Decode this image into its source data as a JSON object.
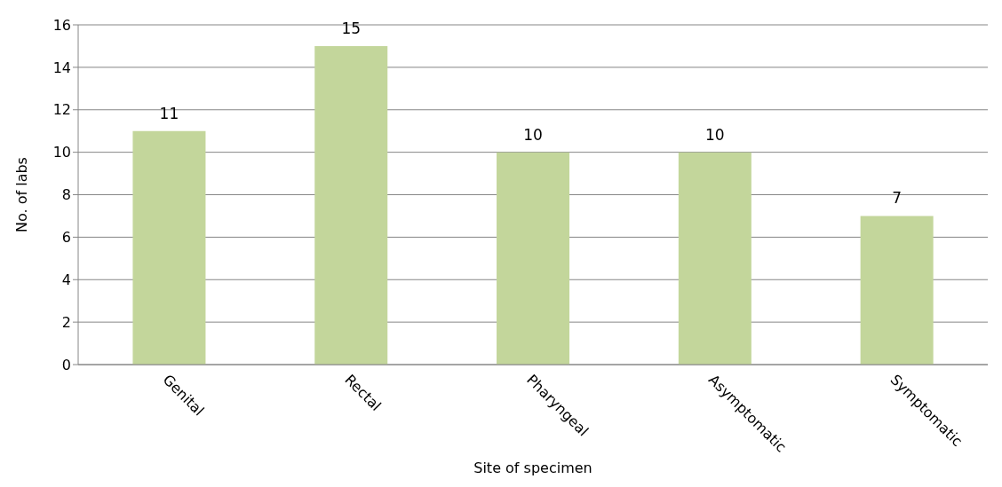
{
  "chart_data": {
    "type": "bar",
    "xlabel": "Site of specimen",
    "ylabel": "No. of labs",
    "categories": [
      "Genital",
      "Rectal",
      "Pharyngeal",
      "Asymptomatic",
      "Symptomatic"
    ],
    "values": [
      11,
      15,
      10,
      10,
      7
    ],
    "color": "#c3d69b",
    "ylim": [
      0,
      16
    ],
    "yticks": [
      0,
      2,
      4,
      6,
      8,
      10,
      12,
      14,
      16
    ],
    "grid": "y",
    "data_labels": true
  }
}
